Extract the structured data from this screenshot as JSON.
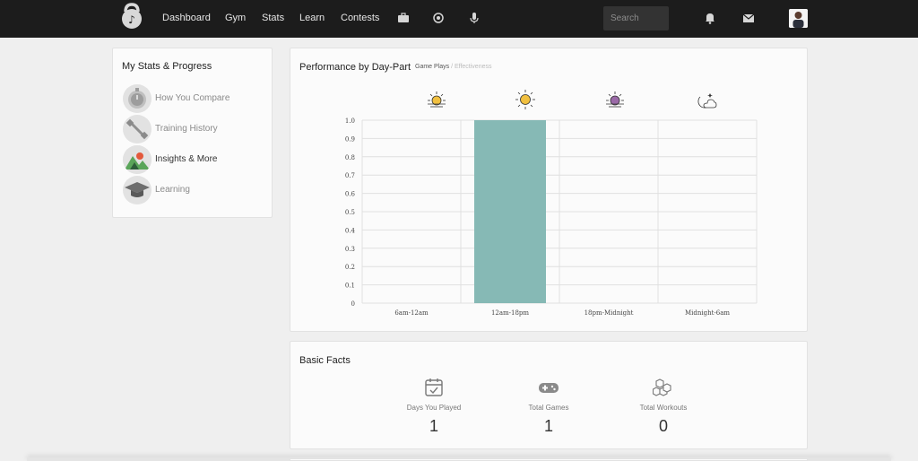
{
  "nav": {
    "links": [
      "Dashboard",
      "Gym",
      "Stats",
      "Learn",
      "Contests"
    ],
    "icons": [
      "briefcase-icon",
      "target-icon",
      "microphone-icon",
      "bell-icon",
      "envelope-icon"
    ],
    "search_placeholder": "Search"
  },
  "sidebar": {
    "title": "My Stats & Progress",
    "items": [
      {
        "label": "How You Compare",
        "icon": "stopwatch-icon",
        "active": false
      },
      {
        "label": "Training History",
        "icon": "dumbbell-icon",
        "active": false
      },
      {
        "label": "Insights & More",
        "icon": "mountains-icon",
        "active": true
      },
      {
        "label": "Learning",
        "icon": "graduation-cap-icon",
        "active": false
      }
    ]
  },
  "performance": {
    "title": "Performance by Day-Part",
    "tab_active": "Game Plays",
    "tab_separator": "/",
    "tab_inactive": "Effectiveness",
    "day_icons": [
      "sunrise-icon",
      "sun-icon",
      "sunset-icon",
      "moon-icon"
    ]
  },
  "chart_data": {
    "type": "bar",
    "categories": [
      "6am-12am",
      "12am-18pm",
      "18pm-Midnight",
      "Midnight-6am"
    ],
    "values": [
      0,
      1.0,
      0,
      0
    ],
    "ylim": [
      0,
      1.0
    ],
    "yticks": [
      "0",
      "0.1",
      "0.2",
      "0.3",
      "0.4",
      "0.5",
      "0.6",
      "0.7",
      "0.8",
      "0.9",
      "1.0"
    ],
    "bar_color": "#86b9b5",
    "grid": true
  },
  "facts": {
    "title": "Basic Facts",
    "items": [
      {
        "label": "Days You Played",
        "value": "1",
        "icon": "calendar-check-icon"
      },
      {
        "label": "Total Games",
        "value": "1",
        "icon": "gamepad-icon"
      },
      {
        "label": "Total Workouts",
        "value": "0",
        "icon": "cubes-icon"
      }
    ]
  }
}
